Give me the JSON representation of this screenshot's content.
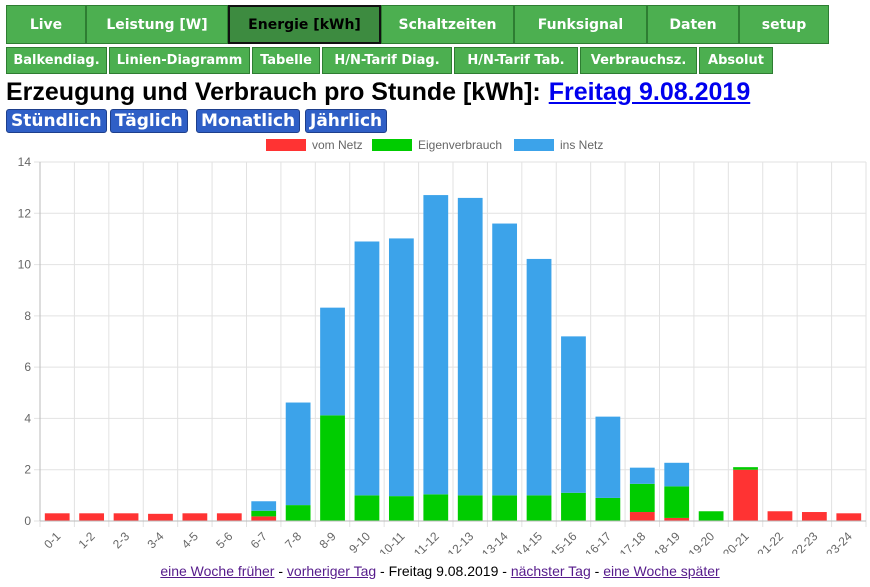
{
  "nav_main": [
    {
      "label": "Live",
      "active": false
    },
    {
      "label": "Leistung [W]",
      "active": false
    },
    {
      "label": "Energie [kWh]",
      "active": true
    },
    {
      "label": "Schaltzeiten",
      "active": false
    },
    {
      "label": "Funksignal",
      "active": false
    },
    {
      "label": "Daten",
      "active": false
    },
    {
      "label": "setup",
      "active": false
    }
  ],
  "nav_sub": [
    "Balkendiag.",
    "Linien-Diagramm",
    "Tabelle",
    "H/N-Tarif Diag.",
    "H/N-Tarif Tab.",
    "Verbrauchsz.",
    "Absolut"
  ],
  "heading": {
    "title": "Erzeugung und Verbrauch pro Stunde [kWh]:",
    "date_link": "Freitag 9.08.2019"
  },
  "periods": [
    "Stündlich",
    "Täglich",
    "Monatlich",
    "Jährlich"
  ],
  "colors": {
    "vom_netz": "#ff3333",
    "eigenverbrauch": "#00cc00",
    "ins_netz": "#3ca3ea",
    "nav_green": "#4caf50",
    "period_blue": "#2f5fc6"
  },
  "chart_data": {
    "type": "bar",
    "stacked": true,
    "categories": [
      "0-1",
      "1-2",
      "2-3",
      "3-4",
      "4-5",
      "5-6",
      "6-7",
      "7-8",
      "8-9",
      "9-10",
      "10-11",
      "11-12",
      "12-13",
      "13-14",
      "14-15",
      "15-16",
      "16-17",
      "17-18",
      "18-19",
      "19-20",
      "20-21",
      "21-22",
      "22-23",
      "23-24"
    ],
    "series": [
      {
        "name": "vom Netz",
        "color": "#ff3333",
        "values": [
          0.3,
          0.3,
          0.3,
          0.28,
          0.3,
          0.3,
          0.18,
          0,
          0,
          0,
          0,
          0,
          0,
          0,
          0,
          0,
          0,
          0.35,
          0.12,
          0,
          2.0,
          0.38,
          0.35,
          0.3
        ]
      },
      {
        "name": "Eigenverbrauch",
        "color": "#00cc00",
        "values": [
          0,
          0,
          0,
          0,
          0,
          0,
          0.22,
          0.62,
          4.12,
          1.0,
          0.97,
          1.04,
          1.0,
          1.0,
          1.0,
          1.1,
          0.9,
          1.1,
          1.23,
          0.38,
          0.1,
          0,
          0,
          0
        ]
      },
      {
        "name": "ins Netz",
        "color": "#3ca3ea",
        "values": [
          0,
          0,
          0,
          0,
          0,
          0,
          0.37,
          4.0,
          4.2,
          9.9,
          10.05,
          11.67,
          11.6,
          10.6,
          9.22,
          6.1,
          3.17,
          0.63,
          0.92,
          0,
          0,
          0,
          0,
          0
        ]
      }
    ],
    "yticks": [
      "0",
      "2",
      "4",
      "6",
      "8",
      "10",
      "12",
      "14"
    ],
    "ylim": [
      0,
      14
    ],
    "grid": true,
    "legend_position": "top-center"
  },
  "footer": {
    "prev_week": "eine Woche früher",
    "sep1": " - ",
    "prev_day": "vorheriger Tag",
    "sep2": " - ",
    "current": "Freitag 9.08.2019",
    "sep3": " - ",
    "next_day": "nächster Tag",
    "sep4": " - ",
    "next_week": "eine Woche später"
  }
}
